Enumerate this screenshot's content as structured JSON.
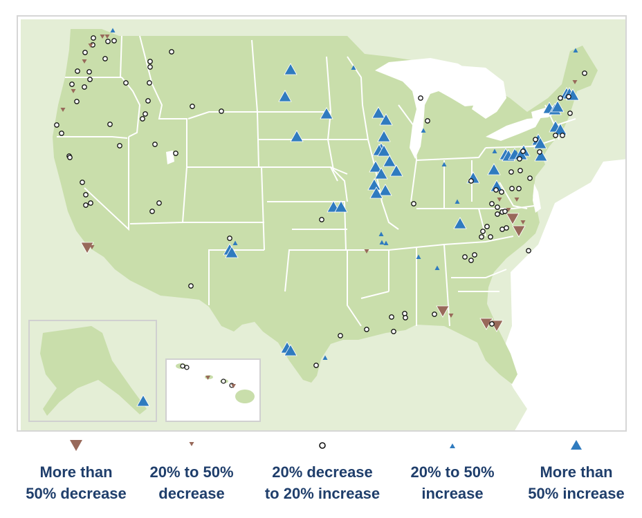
{
  "colors": {
    "land_us": "#c9deab",
    "land_other": "#e4eed6",
    "water": "#ffffff",
    "border": "#ffffff",
    "decrease": "#98695a",
    "increase": "#2f7bbf",
    "neutral_fill": "#ffffff",
    "neutral_stroke": "#111111",
    "legend_text": "#1f3e6b",
    "frame": "#d6d6d6"
  },
  "legend": [
    {
      "key": "large_decrease",
      "symbol": "triangle-down-large-icon",
      "label": "More than\n50% decrease"
    },
    {
      "key": "decrease",
      "symbol": "triangle-down-small-icon",
      "label": "20% to 50%\ndecrease"
    },
    {
      "key": "neutral",
      "symbol": "open-circle-icon",
      "label": "20% decrease\nto 20% increase"
    },
    {
      "key": "increase",
      "symbol": "triangle-up-small-icon",
      "label": "20% to 50%\nincrease"
    },
    {
      "key": "large_increase",
      "symbol": "triangle-up-large-icon",
      "label": "More than\n50% increase"
    }
  ]
}
